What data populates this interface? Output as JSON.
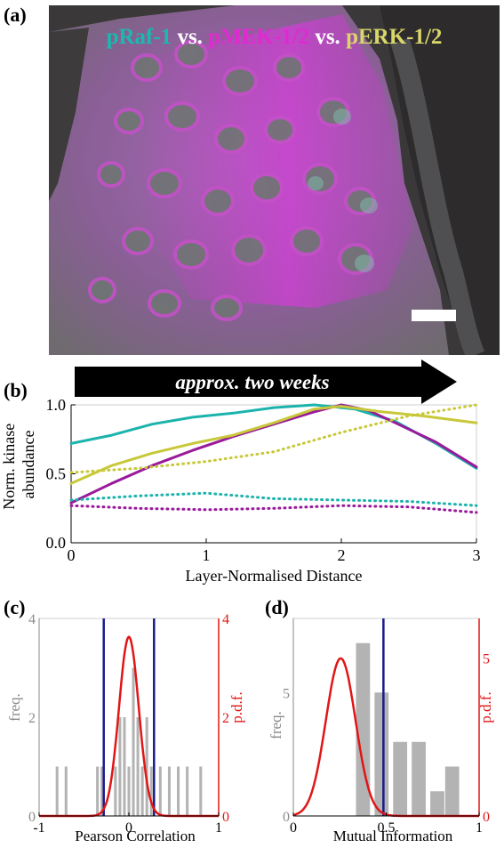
{
  "panels": {
    "a": "(a)",
    "b": "(b)",
    "c": "(c)",
    "d": "(d)"
  },
  "micrograph": {
    "title_raf": "pRaf-1",
    "title_vs1": " vs. ",
    "title_mek": "pMEK-1/2",
    "title_vs2": " vs. ",
    "title_erk": "pERK-1/2",
    "colors": {
      "raf": "#19b9b0",
      "mek": "#e02ad0",
      "erk": "#d9d66a"
    }
  },
  "arrow": {
    "label": "approx. two weeks"
  },
  "chart_data": [
    {
      "type": "line",
      "xlabel": "Layer-Normalised Distance",
      "ylabel": "Norm. kinase abundance",
      "xlim": [
        0,
        3
      ],
      "ylim": [
        0,
        1
      ],
      "xticks": [
        "0",
        "1",
        "2",
        "3"
      ],
      "yticks": [
        "0.0",
        "0.5",
        "1.0"
      ],
      "series": [
        {
          "color": "#1cb3ad",
          "style": "solid",
          "x": [
            0,
            0.3,
            0.6,
            0.9,
            1.2,
            1.5,
            1.8,
            2.1,
            2.4,
            2.7,
            3.0
          ],
          "y": [
            0.72,
            0.78,
            0.86,
            0.91,
            0.94,
            0.98,
            1.0,
            0.97,
            0.88,
            0.72,
            0.54
          ]
        },
        {
          "color": "#9a1a9b",
          "style": "solid",
          "x": [
            0,
            0.3,
            0.6,
            0.9,
            1.2,
            1.5,
            1.8,
            2.0,
            2.2,
            2.4,
            2.7,
            3.0
          ],
          "y": [
            0.29,
            0.43,
            0.56,
            0.67,
            0.77,
            0.86,
            0.95,
            1.0,
            0.96,
            0.87,
            0.73,
            0.55
          ]
        },
        {
          "color": "#c8c83a",
          "style": "solid",
          "x": [
            0,
            0.3,
            0.6,
            0.9,
            1.2,
            1.5,
            1.8,
            2.0,
            2.3,
            2.6,
            3.0
          ],
          "y": [
            0.43,
            0.56,
            0.65,
            0.72,
            0.78,
            0.87,
            0.97,
            0.99,
            0.95,
            0.92,
            0.87
          ]
        },
        {
          "color": "#c8c83a",
          "style": "dotted",
          "x": [
            0,
            0.5,
            1.0,
            1.5,
            2.0,
            2.5,
            3.0
          ],
          "y": [
            0.51,
            0.54,
            0.59,
            0.66,
            0.8,
            0.92,
            1.0
          ]
        },
        {
          "color": "#1cb3ad",
          "style": "dotted",
          "x": [
            0,
            0.5,
            1.0,
            1.5,
            2.0,
            2.5,
            3.0
          ],
          "y": [
            0.31,
            0.34,
            0.36,
            0.32,
            0.31,
            0.3,
            0.27
          ]
        },
        {
          "color": "#9a1a9b",
          "style": "dotted",
          "x": [
            0,
            0.5,
            1.0,
            1.5,
            2.0,
            2.5,
            3.0
          ],
          "y": [
            0.27,
            0.25,
            0.24,
            0.25,
            0.27,
            0.26,
            0.22
          ]
        }
      ]
    },
    {
      "type": "bar",
      "xlabel": "Pearson Correlation",
      "ylabel": "freq.",
      "ylabel_right": "p.d.f.",
      "xlim": [
        -1,
        1
      ],
      "ylim": [
        0,
        4
      ],
      "ylim_right": [
        0,
        4
      ],
      "xticks": [
        "-1",
        "0",
        "1"
      ],
      "yticks": [
        "0",
        "2",
        "4"
      ],
      "yticks_right": [
        "0",
        "2",
        "4"
      ],
      "bin_width": 0.05,
      "bins_x": [
        -0.8,
        -0.7,
        -0.35,
        -0.3,
        -0.15,
        -0.1,
        -0.05,
        0.0,
        0.05,
        0.1,
        0.15,
        0.2,
        0.25,
        0.35,
        0.45,
        0.55,
        0.65,
        0.8
      ],
      "bins_y": [
        1,
        1,
        1,
        1,
        1,
        2,
        2,
        1,
        3,
        2,
        1,
        2,
        1,
        1,
        1,
        1,
        1,
        1
      ],
      "vlines": [
        -0.28,
        0.28
      ],
      "pdf_mean": 0.0,
      "pdf_sd": 0.11
    },
    {
      "type": "bar",
      "xlabel": "Mutual Information",
      "ylabel": "freq.",
      "ylabel_right": "p.d.f.",
      "xlim": [
        0,
        1
      ],
      "ylim": [
        0,
        8
      ],
      "ylim_right": [
        0,
        6.25
      ],
      "xticks": [
        "0",
        "0.5",
        "1"
      ],
      "yticks": [
        "0",
        "5"
      ],
      "yticks_right": [
        "0",
        "5"
      ],
      "bin_width": 0.085,
      "bins_x": [
        0.375,
        0.475,
        0.575,
        0.675,
        0.775,
        0.855
      ],
      "bins_y": [
        7,
        5,
        3,
        3,
        1,
        2
      ],
      "vlines": [
        0.485
      ],
      "pdf_mean": 0.255,
      "pdf_sd": 0.08
    }
  ]
}
